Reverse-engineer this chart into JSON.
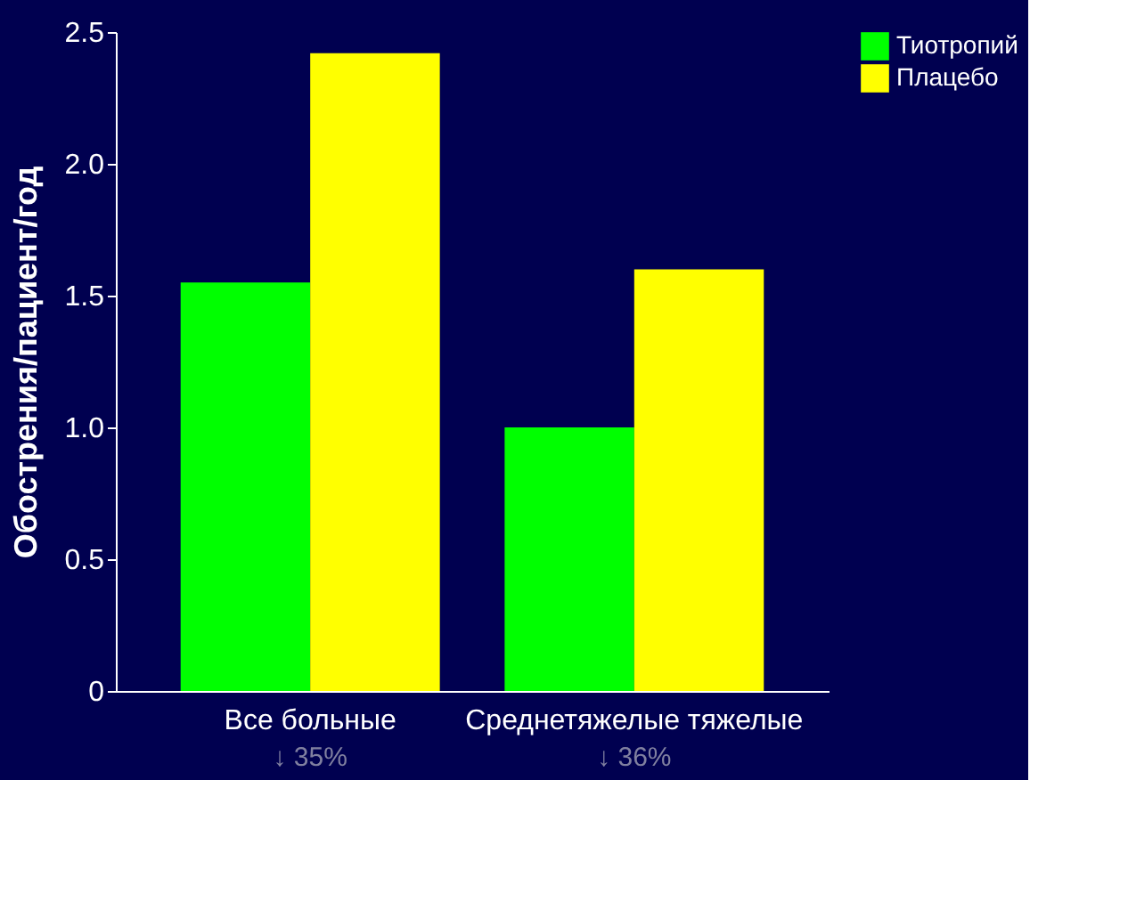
{
  "chart_data": {
    "type": "bar",
    "ylabel": "Обострения/пациент/год",
    "categories": [
      "Все больные",
      "Среднетяжелые тяжелые"
    ],
    "series": [
      {
        "name": "Тиотропий",
        "color": "#00ff00",
        "values": [
          1.55,
          1.0
        ]
      },
      {
        "name": "Плацебо",
        "color": "#ffff00",
        "values": [
          2.42,
          1.6
        ]
      }
    ],
    "ylim": [
      0,
      2.5
    ],
    "yticks": [
      0,
      0.5,
      {
        "value": 1,
        "label": "1.0"
      },
      1.5,
      {
        "value": 2,
        "label": "2.0"
      },
      2.5
    ],
    "annotations": [
      "↓ 35%",
      "↓ 36%"
    ],
    "legend": "right",
    "grid": false
  }
}
